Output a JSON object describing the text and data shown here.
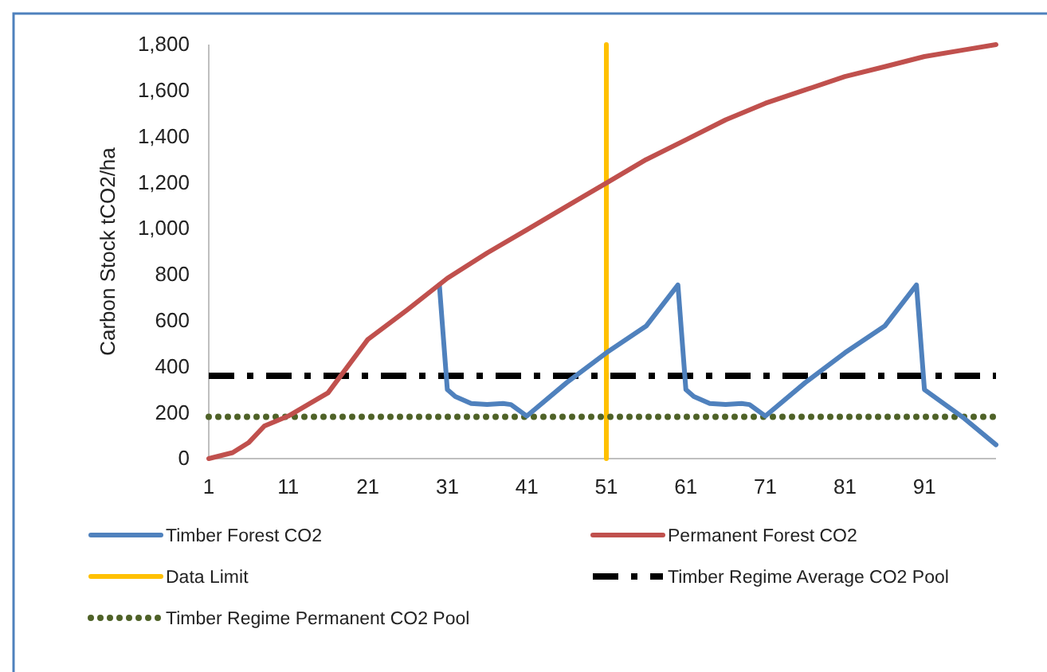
{
  "chart_data": {
    "type": "line",
    "ylabel": "Carbon Stock tCO2/ha",
    "xlim": [
      1,
      100
    ],
    "xticks": [
      1,
      11,
      21,
      31,
      41,
      51,
      61,
      71,
      81,
      91
    ],
    "ylim": [
      0,
      1800
    ],
    "yticks": [
      {
        "value": 0,
        "label": "0"
      },
      {
        "value": 200,
        "label": "200"
      },
      {
        "value": 400,
        "label": "400"
      },
      {
        "value": 600,
        "label": "600"
      },
      {
        "value": 800,
        "label": "800"
      },
      {
        "value": 1000,
        "label": "1,000"
      },
      {
        "value": 1200,
        "label": "1,200"
      },
      {
        "value": 1400,
        "label": "1,400"
      },
      {
        "value": 1600,
        "label": "1,600"
      },
      {
        "value": 1800,
        "label": "1,800"
      }
    ],
    "grid": false,
    "legend": "bottom",
    "marker": "none",
    "series": [
      {
        "name": "Timber Forest CO2",
        "color": "#4f81bd",
        "line_style": "solid",
        "x": [
          30,
          31,
          32,
          34,
          36,
          38,
          39,
          41,
          46,
          51,
          56,
          60,
          61,
          62,
          64,
          66,
          68,
          69,
          71,
          76,
          81,
          86,
          90,
          91,
          96,
          100
        ],
        "values": [
          755,
          300,
          270,
          240,
          235,
          240,
          235,
          185,
          330,
          460,
          576,
          755,
          300,
          270,
          240,
          235,
          240,
          235,
          185,
          330,
          460,
          576,
          755,
          300,
          175,
          60
        ]
      },
      {
        "name": "Permanent Forest CO2",
        "color": "#c0504d",
        "line_style": "solid",
        "x": [
          1,
          4,
          6,
          8,
          11,
          16,
          21,
          26,
          31,
          36,
          41,
          46,
          51,
          56,
          61,
          66,
          71,
          76,
          81,
          86,
          91,
          96,
          100
        ],
        "values": [
          0,
          26,
          69,
          142,
          185,
          286,
          518,
          648,
          784,
          894,
          995,
          1097,
          1198,
          1300,
          1386,
          1473,
          1545,
          1603,
          1661,
          1704,
          1748,
          1777,
          1800
        ]
      },
      {
        "name": "Data Limit",
        "color": "#ffc000",
        "line_style": "solid",
        "x": [
          51,
          51
        ],
        "values": [
          0,
          1800
        ]
      },
      {
        "name": "Timber Regime Average CO2 Pool",
        "color": "#000000",
        "line_style": "dashed",
        "x": [
          1,
          100
        ],
        "values": [
          360,
          360
        ]
      },
      {
        "name": "Timber Regime Permanent CO2 Pool",
        "color": "#4f6228",
        "line_style": "dotted",
        "x": [
          1,
          100
        ],
        "values": [
          182,
          182
        ]
      }
    ]
  }
}
